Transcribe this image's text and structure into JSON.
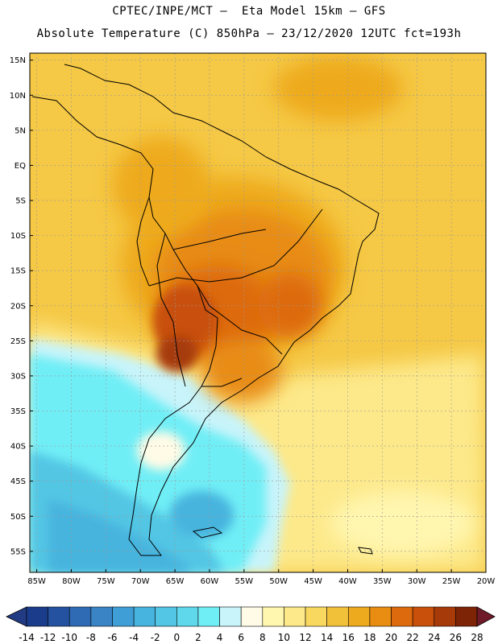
{
  "header": {
    "line1": "CPTEC/INPE/MCT —  Eta Model 15km — GFS",
    "line2": "Absolute Temperature (C) 850hPa — 23/12/2020 12UTC fct=193h"
  },
  "map": {
    "lat_labels": [
      "15N",
      "10N",
      "5N",
      "EQ",
      "5S",
      "10S",
      "15S",
      "20S",
      "25S",
      "30S",
      "35S",
      "40S",
      "45S",
      "50S",
      "55S"
    ],
    "lon_labels": [
      "85W",
      "80W",
      "75W",
      "70W",
      "65W",
      "60W",
      "55W",
      "50W",
      "45W",
      "40W",
      "35W",
      "30W",
      "25W",
      "20W"
    ],
    "lat_range": [
      -58,
      16
    ],
    "lon_range": [
      -86,
      -20
    ]
  },
  "colorbar": {
    "labels": [
      "-14",
      "-12",
      "-10",
      "-8",
      "-6",
      "-4",
      "-2",
      "0",
      "2",
      "4",
      "6",
      "8",
      "10",
      "12",
      "14",
      "16",
      "18",
      "20",
      "22",
      "24",
      "26",
      "28"
    ],
    "colors": [
      "#1a3c8a",
      "#2452a0",
      "#2f6bb4",
      "#3a84c6",
      "#3f9ed6",
      "#46b4de",
      "#52c6e4",
      "#5fd8ec",
      "#70eef6",
      "#c8f4fa",
      "#fffbe6",
      "#fff6b0",
      "#fde98a",
      "#f9d85f",
      "#f2c13a",
      "#eeaa1e",
      "#e88c12",
      "#dd6a0c",
      "#c8500a",
      "#a63a08",
      "#7e2406"
    ]
  },
  "legend": {
    "under_color": "#223c84",
    "over_color": "#6e1a28"
  }
}
